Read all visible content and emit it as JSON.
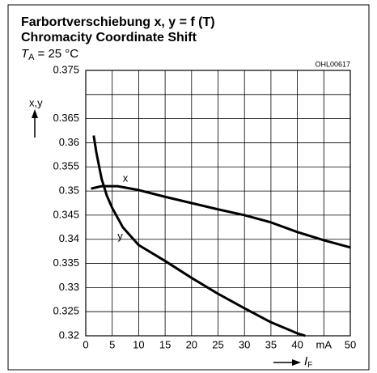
{
  "chart_data": {
    "type": "line",
    "title": "Farbortverschiebung x, y = f (T)",
    "subtitle": "Chromacity Coordinate Shift",
    "condition": {
      "symbol": "T",
      "sub": "A",
      "text": "= 25 °C"
    },
    "code": "OHL00617",
    "ylabel": "x,y",
    "xlabel": {
      "symbol": "I",
      "sub": "F"
    },
    "xlim": [
      0,
      50
    ],
    "ylim": [
      0.32,
      0.375
    ],
    "xticks": [
      0,
      5,
      10,
      15,
      20,
      25,
      30,
      35,
      40,
      {
        "value": 45,
        "label": "mA"
      },
      50
    ],
    "yticks": [
      0.32,
      0.325,
      0.33,
      0.335,
      0.34,
      0.345,
      0.35,
      0.355,
      0.36,
      0.365,
      0.375
    ],
    "ygrid": [
      0.32,
      0.325,
      0.33,
      0.335,
      0.34,
      0.345,
      0.35,
      0.355,
      0.36,
      0.365,
      0.37,
      0.375
    ],
    "grid": true,
    "series": [
      {
        "name": "x",
        "color": "#000000",
        "x": [
          1,
          3,
          6,
          10,
          15,
          20,
          25,
          30,
          35,
          40,
          45,
          50
        ],
        "values": [
          0.3505,
          0.351,
          0.351,
          0.3502,
          0.3488,
          0.3475,
          0.3462,
          0.345,
          0.3435,
          0.3415,
          0.3398,
          0.3383
        ],
        "label_at": [
          7,
          0.3525
        ]
      },
      {
        "name": "y",
        "color": "#000000",
        "x": [
          1.5,
          2,
          3,
          4,
          5,
          7,
          10,
          15,
          20,
          25,
          30,
          35,
          40,
          41.5
        ],
        "values": [
          0.3615,
          0.358,
          0.3525,
          0.349,
          0.3465,
          0.3425,
          0.3388,
          0.3355,
          0.332,
          0.3287,
          0.3257,
          0.3228,
          0.3205,
          0.32
        ],
        "label_at": [
          6,
          0.3405
        ]
      }
    ]
  }
}
